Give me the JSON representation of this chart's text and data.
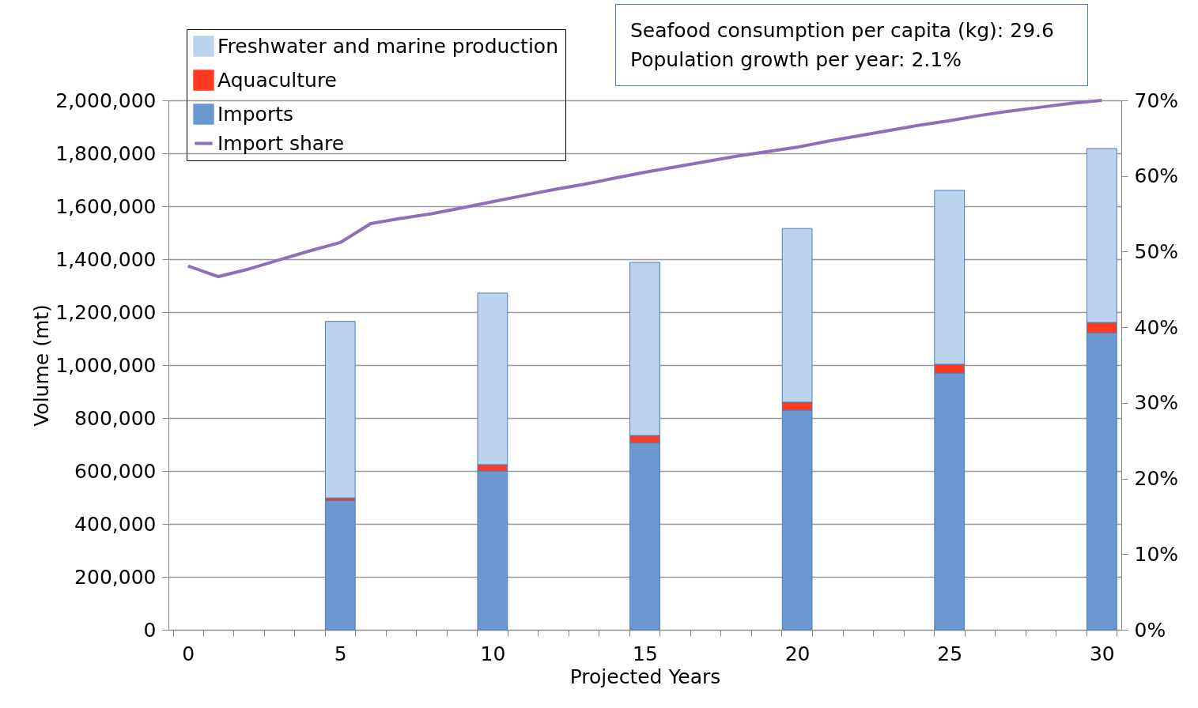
{
  "chart_data": {
    "type": "bar",
    "stacked": true,
    "xlabel": "Projected Years",
    "ylabel": "Volume (mt)",
    "categories": [
      "0",
      null,
      null,
      null,
      null,
      "5",
      null,
      null,
      null,
      null,
      "10",
      null,
      null,
      null,
      null,
      "15",
      null,
      null,
      null,
      null,
      "20",
      null,
      null,
      null,
      null,
      "25",
      null,
      null,
      null,
      null,
      "30"
    ],
    "series": [
      {
        "name": "Imports",
        "color": "#6a98cf",
        "values": [
          null,
          null,
          null,
          null,
          null,
          488000,
          null,
          null,
          null,
          null,
          600000,
          null,
          null,
          null,
          null,
          707000,
          null,
          null,
          null,
          null,
          830000,
          null,
          null,
          null,
          null,
          970000,
          null,
          null,
          null,
          null,
          1122000
        ]
      },
      {
        "name": "Aquaculture",
        "color": "#ff3b1f",
        "values": [
          null,
          null,
          null,
          null,
          null,
          10000,
          null,
          null,
          null,
          null,
          24000,
          null,
          null,
          null,
          null,
          27000,
          null,
          null,
          null,
          null,
          30000,
          null,
          null,
          null,
          null,
          33000,
          null,
          null,
          null,
          null,
          39000
        ]
      },
      {
        "name": "Freshwater and marine production",
        "color": "#bcd3ee",
        "values": [
          null,
          null,
          null,
          null,
          null,
          667000,
          null,
          null,
          null,
          null,
          648000,
          null,
          null,
          null,
          null,
          654000,
          null,
          null,
          null,
          null,
          656000,
          null,
          null,
          null,
          null,
          657000,
          null,
          null,
          null,
          null,
          657000
        ]
      },
      {
        "name": "Import share",
        "type": "line",
        "axis": "y2",
        "color": "#8f6fb8",
        "values": [
          48.1,
          46.7,
          47.7,
          48.9,
          50.1,
          51.2,
          53.7,
          54.4,
          55.0,
          55.8,
          56.6,
          57.4,
          58.2,
          58.9,
          59.7,
          60.5,
          61.2,
          61.9,
          62.6,
          63.2,
          63.8,
          64.6,
          65.3,
          66.0,
          66.7,
          67.3,
          68.0,
          68.6,
          69.1,
          69.6,
          70.0
        ]
      }
    ],
    "ylim": [
      0,
      2000000
    ],
    "yticks": [
      0,
      {
        "value": 200000,
        "label": "200,000"
      },
      {
        "value": 400000,
        "label": "400,000"
      },
      {
        "value": 600000,
        "label": "600,000"
      },
      {
        "value": 800000,
        "label": "800,000"
      },
      {
        "value": 1000000,
        "label": "1,000,000"
      },
      {
        "value": 1200000,
        "label": "1,200,000"
      },
      {
        "value": 1400000,
        "label": "1,400,000"
      },
      {
        "value": 1600000,
        "label": "1,600,000"
      },
      {
        "value": 1800000,
        "label": "1,800,000"
      },
      {
        "value": 2000000,
        "label": "2,000,000"
      }
    ],
    "y2lim": [
      0,
      70
    ],
    "y2ticks": [
      {
        "value": 0,
        "label": "0%"
      },
      {
        "value": 10,
        "label": "10%"
      },
      {
        "value": 20,
        "label": "20%"
      },
      {
        "value": 30,
        "label": "30%"
      },
      {
        "value": 40,
        "label": "40%"
      },
      {
        "value": 50,
        "label": "50%"
      },
      {
        "value": 60,
        "label": "60%"
      },
      {
        "value": 70,
        "label": "70%"
      }
    ],
    "grid": "y",
    "legend": "top left",
    "annotations": [
      "Seafood consumption per capita (kg):  29.6",
      "Population growth per year:  2.1%"
    ]
  }
}
